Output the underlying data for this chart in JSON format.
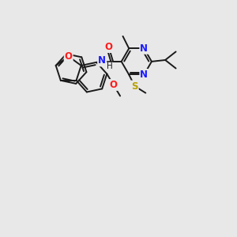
{
  "background_color": "#e8e8e8",
  "bond_color": "#1a1a1a",
  "N_color": "#1a1aff",
  "O_color": "#ff1a1a",
  "S_color": "#b8a000",
  "bond_width": 1.4,
  "figsize": [
    3.0,
    3.0
  ],
  "dpi": 100,
  "xlim": [
    0,
    10
  ],
  "ylim": [
    0,
    10
  ]
}
